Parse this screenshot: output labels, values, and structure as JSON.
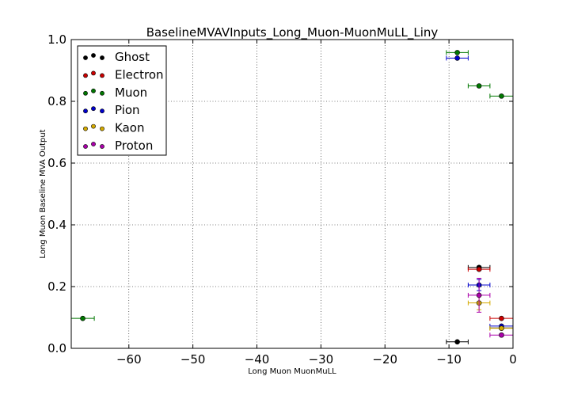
{
  "chart_data": {
    "type": "scatter",
    "title": "BaselineMVAVInputs_Long_Muon-MuonMuLL_Liny",
    "xlabel": "Long Muon MuonMuLL",
    "ylabel": "Long Muon Baseline MVA Output",
    "xlim": [
      -69,
      0
    ],
    "ylim": [
      0,
      1.0
    ],
    "x_ticks": [
      -60,
      -50,
      -40,
      -30,
      -20,
      -10,
      0
    ],
    "x_tick_labels": [
      "−60",
      "−50",
      "−40",
      "−30",
      "−20",
      "−10",
      "0"
    ],
    "y_ticks": [
      0.0,
      0.2,
      0.4,
      0.6,
      0.8,
      1.0
    ],
    "y_tick_labels": [
      "0.0",
      "0.2",
      "0.4",
      "0.6",
      "0.8",
      "1.0"
    ],
    "grid": true,
    "legend_position": "top-left",
    "series": [
      {
        "name": "Ghost",
        "color": "#000000",
        "points": [
          {
            "x": -8.7,
            "y": 0.021,
            "xerr": 1.7,
            "yerr": 0.0
          },
          {
            "x": -5.3,
            "y": 0.262,
            "xerr": 1.7,
            "yerr": 0.004
          },
          {
            "x": -1.8,
            "y": 0.066,
            "xerr": 1.8,
            "yerr": 0.0
          }
        ]
      },
      {
        "name": "Electron",
        "color": "#cc0000",
        "points": [
          {
            "x": -5.3,
            "y": 0.256,
            "xerr": 1.7,
            "yerr": 0.003
          },
          {
            "x": -1.8,
            "y": 0.097,
            "xerr": 1.8,
            "yerr": 0.0
          }
        ]
      },
      {
        "name": "Muon",
        "color": "#007700",
        "points": [
          {
            "x": -67.2,
            "y": 0.097,
            "xerr": 1.8,
            "yerr": 0.0
          },
          {
            "x": -8.7,
            "y": 0.958,
            "xerr": 1.7,
            "yerr": 0.0
          },
          {
            "x": -5.3,
            "y": 0.85,
            "xerr": 1.7,
            "yerr": 0.0
          },
          {
            "x": -1.8,
            "y": 0.817,
            "xerr": 1.8,
            "yerr": 0.0
          }
        ]
      },
      {
        "name": "Pion",
        "color": "#0000cc",
        "points": [
          {
            "x": -8.7,
            "y": 0.94,
            "xerr": 1.7,
            "yerr": 0.0
          },
          {
            "x": -5.3,
            "y": 0.205,
            "xerr": 1.7,
            "yerr": 0.018
          },
          {
            "x": -1.8,
            "y": 0.072,
            "xerr": 1.8,
            "yerr": 0.0
          }
        ]
      },
      {
        "name": "Kaon",
        "color": "#d4aa00",
        "points": [
          {
            "x": -5.3,
            "y": 0.147,
            "xerr": 1.7,
            "yerr": 0.022
          },
          {
            "x": -1.8,
            "y": 0.065,
            "xerr": 1.8,
            "yerr": 0.003
          }
        ]
      },
      {
        "name": "Proton",
        "color": "#aa00aa",
        "points": [
          {
            "x": -5.3,
            "y": 0.172,
            "xerr": 1.7,
            "yerr": 0.055
          },
          {
            "x": -1.8,
            "y": 0.043,
            "xerr": 1.8,
            "yerr": 0.004
          }
        ]
      }
    ]
  }
}
